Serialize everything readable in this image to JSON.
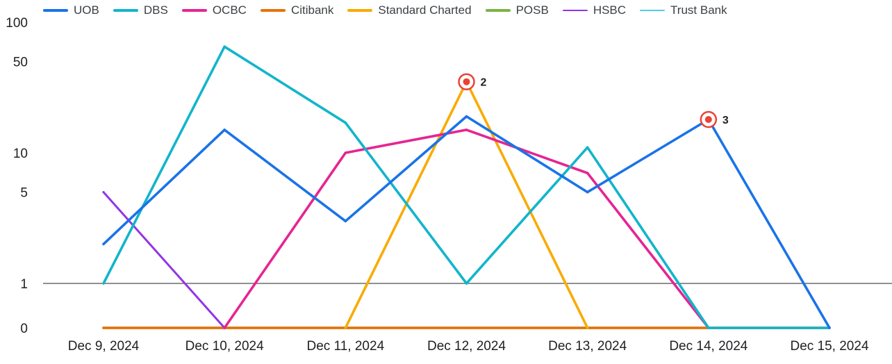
{
  "chart_data": {
    "type": "line",
    "title": "",
    "xlabel": "",
    "ylabel": "",
    "y_scale": "log (with 0 baseline)",
    "x": [
      "Dec 9, 2024",
      "Dec 10, 2024",
      "Dec 11, 2024",
      "Dec 12, 2024",
      "Dec 13, 2024",
      "Dec 14, 2024",
      "Dec 15, 2024"
    ],
    "y_ticks": [
      0,
      1,
      5,
      10,
      50,
      100
    ],
    "y_tick_labels": [
      "0",
      "1",
      "5",
      "10",
      "50",
      "100"
    ],
    "grid": false,
    "legend_position": "top-left",
    "series": [
      {
        "name": "UOB",
        "color": "#1a73e8",
        "values": [
          2,
          15,
          3,
          19,
          5,
          18,
          0
        ]
      },
      {
        "name": "DBS",
        "color": "#12b5cb",
        "values": [
          1,
          65,
          17,
          1,
          11,
          0,
          0
        ]
      },
      {
        "name": "OCBC",
        "color": "#e52592",
        "values": [
          null,
          0,
          10,
          15,
          7,
          0,
          null
        ]
      },
      {
        "name": "Citibank",
        "color": "#e8710a",
        "values": [
          0,
          0,
          0,
          0,
          0,
          0,
          0
        ]
      },
      {
        "name": "Standard Charted",
        "color": "#f9ab00",
        "values": [
          null,
          null,
          0,
          35,
          0,
          null,
          null
        ]
      },
      {
        "name": "POSB",
        "color": "#7cb342",
        "values": [
          0,
          0,
          0,
          0,
          0,
          0,
          0
        ]
      },
      {
        "name": "HSBC",
        "color": "#9334e6",
        "values": [
          5,
          0,
          null,
          null,
          null,
          null,
          null
        ]
      },
      {
        "name": "Trust Bank",
        "color": "#4ecde6",
        "values": [
          null,
          null,
          null,
          null,
          null,
          null,
          null
        ]
      }
    ],
    "annotations": [
      {
        "label": "2",
        "x": "Dec 12, 2024",
        "y": 35,
        "series": "Standard Charted"
      },
      {
        "label": "3",
        "x": "Dec 14, 2024",
        "y": 18,
        "series": "UOB"
      }
    ],
    "annotation_color": "#ea4335",
    "baseline_color": "#202124"
  }
}
